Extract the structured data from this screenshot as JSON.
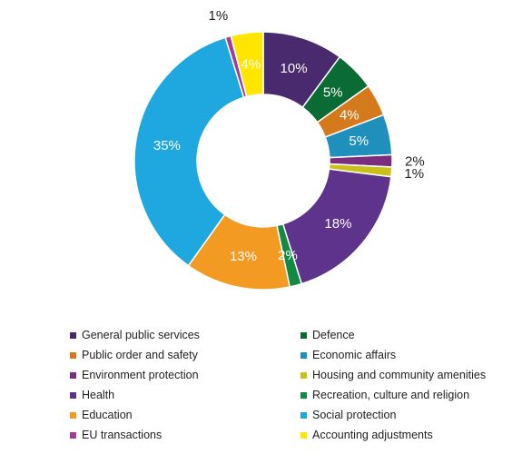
{
  "chart_data": {
    "type": "pie",
    "donut": true,
    "title": "",
    "slices": [
      {
        "name": "General public services",
        "value": 10,
        "label": "10%",
        "color": "#4a2a6e",
        "label_color": "#ffffff"
      },
      {
        "name": "Defence",
        "value": 5,
        "label": "5%",
        "color": "#0a6b34",
        "label_color": "#ffffff"
      },
      {
        "name": "Public order and safety",
        "value": 4,
        "label": "4%",
        "color": "#d57a1c",
        "label_color": "#ffffff"
      },
      {
        "name": "Economic affairs",
        "value": 5,
        "label": "5%",
        "color": "#1f8fbb",
        "label_color": "#ffffff"
      },
      {
        "name": "Environment protection",
        "value": 1.5,
        "label": "2%",
        "color": "#7b2d7e",
        "label_color": "#222222"
      },
      {
        "name": "Housing and community amenities",
        "value": 1.2,
        "label": "1%",
        "color": "#c9c11a",
        "label_color": "#222222"
      },
      {
        "name": "Health",
        "value": 18,
        "label": "18%",
        "color": "#5e338c",
        "label_color": "#ffffff"
      },
      {
        "name": "Recreation, culture and religion",
        "value": 1.5,
        "label": "2%",
        "color": "#138a44",
        "label_color": "#ffffff"
      },
      {
        "name": "Education",
        "value": 13,
        "label": "13%",
        "color": "#f39a22",
        "label_color": "#ffffff"
      },
      {
        "name": "Social protection",
        "value": 35,
        "label": "35%",
        "color": "#1fa7e0",
        "label_color": "#ffffff"
      },
      {
        "name": "EU transactions",
        "value": 0.7,
        "label": "1%",
        "color": "#a13b9c",
        "label_color": "#222222"
      },
      {
        "name": "Accounting adjustments",
        "value": 4,
        "label": "4%",
        "color": "#ffe500",
        "label_color": "#ffffff"
      }
    ],
    "legend_position": "bottom"
  }
}
